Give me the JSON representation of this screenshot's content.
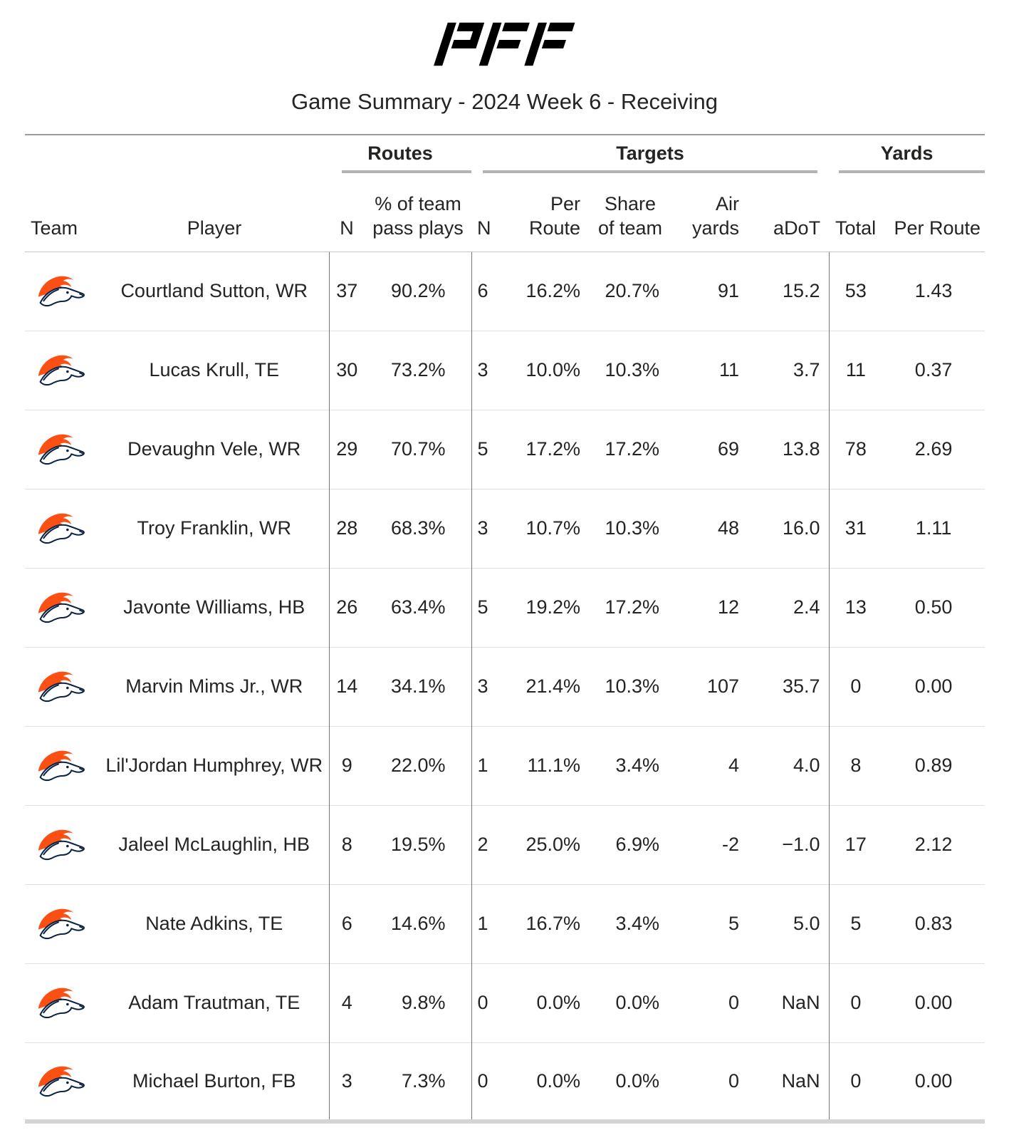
{
  "brand": {
    "logo_text": "PFF"
  },
  "colors": {
    "text": "#252423",
    "broncos_orange": "#FB4F14",
    "broncos_navy": "#0A2343",
    "group_underline": "#B3B3B3",
    "table_top_border": "#9D9B99",
    "header_bottom_border": "#C8C6C4",
    "row_separator": "#E3E1DF",
    "column_divider": "#767676",
    "table_bottom_border": "#D6D4D2"
  },
  "chart_data": {
    "type": "table",
    "title": "Game Summary - 2024 Week 6 - Receiving",
    "column_groups": [
      {
        "label": ""
      },
      {
        "label": "Routes"
      },
      {
        "label": "Targets"
      },
      {
        "label": "Yards"
      }
    ],
    "columns": [
      {
        "key": "team",
        "label": "Team"
      },
      {
        "key": "player",
        "label": "Player"
      },
      {
        "key": "routes_n",
        "label": "N"
      },
      {
        "key": "routes_pct",
        "label": "% of team\npass plays"
      },
      {
        "key": "targets_n",
        "label": "N"
      },
      {
        "key": "per_route",
        "label": "Per Route"
      },
      {
        "key": "share_of_team",
        "label": "Share\nof team"
      },
      {
        "key": "air_yards",
        "label": "Air yards"
      },
      {
        "key": "adot",
        "label": "aDoT"
      },
      {
        "key": "total",
        "label": "Total"
      },
      {
        "key": "yards_per_route",
        "label": "Per Route"
      }
    ],
    "rows": [
      {
        "team_icon": "broncos-logo",
        "player": "Courtland Sutton, WR",
        "routes_n": "37",
        "routes_pct": "90.2%",
        "targets_n": "6",
        "per_route": "16.2%",
        "share_of_team": "20.7%",
        "air_yards": "91",
        "adot": "15.2",
        "total": "53",
        "yards_per_route": "1.43"
      },
      {
        "team_icon": "broncos-logo",
        "player": "Lucas Krull, TE",
        "routes_n": "30",
        "routes_pct": "73.2%",
        "targets_n": "3",
        "per_route": "10.0%",
        "share_of_team": "10.3%",
        "air_yards": "11",
        "adot": "3.7",
        "total": "11",
        "yards_per_route": "0.37"
      },
      {
        "team_icon": "broncos-logo",
        "player": "Devaughn Vele, WR",
        "routes_n": "29",
        "routes_pct": "70.7%",
        "targets_n": "5",
        "per_route": "17.2%",
        "share_of_team": "17.2%",
        "air_yards": "69",
        "adot": "13.8",
        "total": "78",
        "yards_per_route": "2.69"
      },
      {
        "team_icon": "broncos-logo",
        "player": "Troy Franklin, WR",
        "routes_n": "28",
        "routes_pct": "68.3%",
        "targets_n": "3",
        "per_route": "10.7%",
        "share_of_team": "10.3%",
        "air_yards": "48",
        "adot": "16.0",
        "total": "31",
        "yards_per_route": "1.11"
      },
      {
        "team_icon": "broncos-logo",
        "player": "Javonte Williams, HB",
        "routes_n": "26",
        "routes_pct": "63.4%",
        "targets_n": "5",
        "per_route": "19.2%",
        "share_of_team": "17.2%",
        "air_yards": "12",
        "adot": "2.4",
        "total": "13",
        "yards_per_route": "0.50"
      },
      {
        "team_icon": "broncos-logo",
        "player": "Marvin Mims Jr., WR",
        "routes_n": "14",
        "routes_pct": "34.1%",
        "targets_n": "3",
        "per_route": "21.4%",
        "share_of_team": "10.3%",
        "air_yards": "107",
        "adot": "35.7",
        "total": "0",
        "yards_per_route": "0.00"
      },
      {
        "team_icon": "broncos-logo",
        "player": "Lil'Jordan Humphrey, WR",
        "routes_n": "9",
        "routes_pct": "22.0%",
        "targets_n": "1",
        "per_route": "11.1%",
        "share_of_team": "3.4%",
        "air_yards": "4",
        "adot": "4.0",
        "total": "8",
        "yards_per_route": "0.89"
      },
      {
        "team_icon": "broncos-logo",
        "player": "Jaleel McLaughlin, HB",
        "routes_n": "8",
        "routes_pct": "19.5%",
        "targets_n": "2",
        "per_route": "25.0%",
        "share_of_team": "6.9%",
        "air_yards": "-2",
        "adot": "−1.0",
        "total": "17",
        "yards_per_route": "2.12"
      },
      {
        "team_icon": "broncos-logo",
        "player": "Nate Adkins, TE",
        "routes_n": "6",
        "routes_pct": "14.6%",
        "targets_n": "1",
        "per_route": "16.7%",
        "share_of_team": "3.4%",
        "air_yards": "5",
        "adot": "5.0",
        "total": "5",
        "yards_per_route": "0.83"
      },
      {
        "team_icon": "broncos-logo",
        "player": "Adam Trautman, TE",
        "routes_n": "4",
        "routes_pct": "9.8%",
        "targets_n": "0",
        "per_route": "0.0%",
        "share_of_team": "0.0%",
        "air_yards": "0",
        "adot": "NaN",
        "total": "0",
        "yards_per_route": "0.00"
      },
      {
        "team_icon": "broncos-logo",
        "player": "Michael Burton, FB",
        "routes_n": "3",
        "routes_pct": "7.3%",
        "targets_n": "0",
        "per_route": "0.0%",
        "share_of_team": "0.0%",
        "air_yards": "0",
        "adot": "NaN",
        "total": "0",
        "yards_per_route": "0.00"
      }
    ]
  }
}
